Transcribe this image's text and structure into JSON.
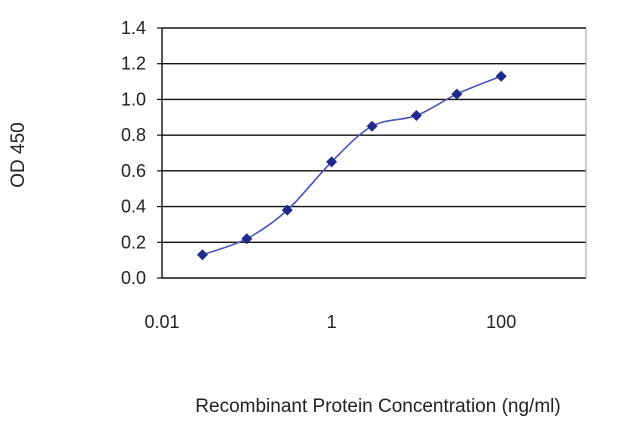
{
  "chart_data": {
    "type": "line",
    "title": "",
    "xlabel": "Recombinant Protein Concentration (ng/ml)",
    "ylabel": "OD 450",
    "x_scale": "log",
    "xlim": [
      0.01,
      1000
    ],
    "ylim": [
      0,
      1.4
    ],
    "grid": "horizontal",
    "legend": "none",
    "x_ticks": [
      {
        "value": 0.01,
        "label": "0.01"
      },
      {
        "value": 1,
        "label": "1"
      },
      {
        "value": 100,
        "label": "100"
      }
    ],
    "y_ticks": [
      {
        "value": 0.0,
        "label": "0.0"
      },
      {
        "value": 0.2,
        "label": "0.2"
      },
      {
        "value": 0.4,
        "label": "0.4"
      },
      {
        "value": 0.6,
        "label": "0.6"
      },
      {
        "value": 0.8,
        "label": "0.8"
      },
      {
        "value": 1.0,
        "label": "1.0"
      },
      {
        "value": 1.2,
        "label": "1.2"
      },
      {
        "value": 1.4,
        "label": "1.4"
      }
    ],
    "series": [
      {
        "x": [
          0.03,
          0.1,
          0.3,
          1,
          3,
          10,
          30,
          100
        ],
        "y": [
          0.13,
          0.22,
          0.38,
          0.65,
          0.85,
          0.91,
          1.03,
          1.13
        ]
      }
    ],
    "colors": {
      "line": "#4a55b8",
      "marker": "#1f2a8c",
      "grid": "#111111",
      "axis": "#111111",
      "plot_background": "#ffffff"
    }
  }
}
